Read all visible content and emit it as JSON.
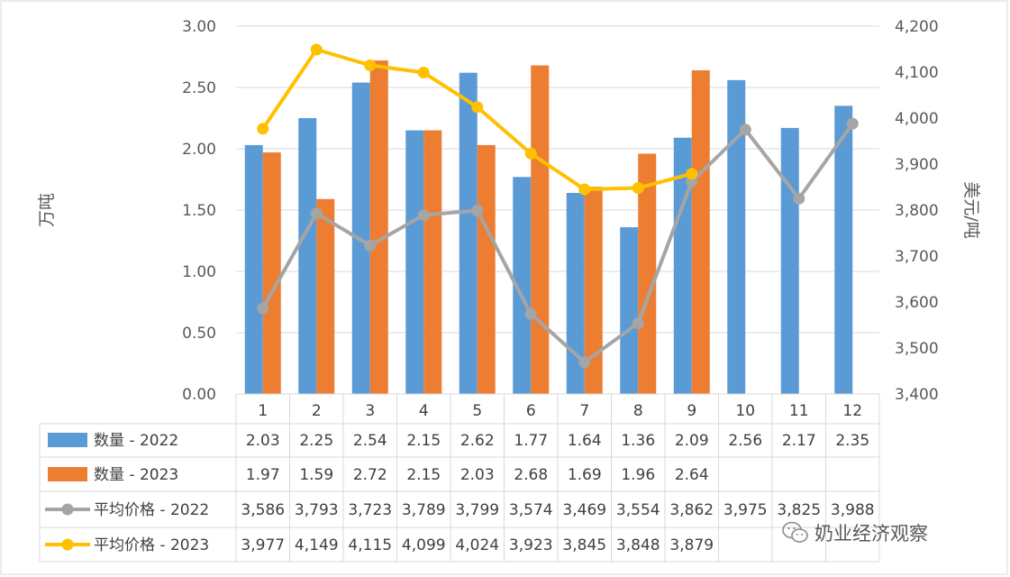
{
  "chart_data": {
    "type": "bar+line combo with data table",
    "categories": [
      "1",
      "2",
      "3",
      "4",
      "5",
      "6",
      "7",
      "8",
      "9",
      "10",
      "11",
      "12"
    ],
    "y_left": {
      "label": "万吨",
      "min": 0,
      "max": 3,
      "ticks": [
        "0.00",
        "0.50",
        "1.00",
        "1.50",
        "2.00",
        "2.50",
        "3.00"
      ]
    },
    "y_right": {
      "label": "美元/吨",
      "min": 3400,
      "max": 4200,
      "ticks": [
        "3,400",
        "3,500",
        "3,600",
        "3,700",
        "3,800",
        "3,900",
        "4,000",
        "4,100",
        "4,200"
      ]
    },
    "gridlines": true,
    "legend": "data table below chart",
    "bars": [
      {
        "name": "数量 - 2022",
        "color": "#5B9BD5",
        "values": [
          2.03,
          2.25,
          2.54,
          2.15,
          2.62,
          1.77,
          1.64,
          1.36,
          2.09,
          2.56,
          2.17,
          2.35
        ],
        "labels": [
          "2.03",
          "2.25",
          "2.54",
          "2.15",
          "2.62",
          "1.77",
          "1.64",
          "1.36",
          "2.09",
          "2.56",
          "2.17",
          "2.35"
        ]
      },
      {
        "name": "数量 - 2023",
        "color": "#ED7D31",
        "values": [
          1.97,
          1.59,
          2.72,
          2.15,
          2.03,
          2.68,
          1.69,
          1.96,
          2.64,
          null,
          null,
          null
        ],
        "labels": [
          "1.97",
          "1.59",
          "2.72",
          "2.15",
          "2.03",
          "2.68",
          "1.69",
          "1.96",
          "2.64",
          "",
          "",
          ""
        ]
      }
    ],
    "lines": [
      {
        "name": "平均价格 - 2022",
        "color": "#A5A5A5",
        "values": [
          3586,
          3793,
          3723,
          3789,
          3799,
          3574,
          3469,
          3554,
          3862,
          3975,
          3825,
          3988
        ],
        "labels": [
          "3,586",
          "3,793",
          "3,723",
          "3,789",
          "3,799",
          "3,574",
          "3,469",
          "3,554",
          "3,862",
          "3,975",
          "3,825",
          "3,988"
        ]
      },
      {
        "name": "平均价格 - 2023",
        "color": "#FFC000",
        "values": [
          3977,
          4149,
          4115,
          4099,
          4024,
          3923,
          3845,
          3848,
          3879,
          null,
          null,
          null
        ],
        "labels": [
          "3,977",
          "4,149",
          "4,115",
          "4,099",
          "4,024",
          "3,923",
          "3,845",
          "3,848",
          "3,879",
          "",
          "",
          ""
        ]
      }
    ]
  },
  "watermark": {
    "text": "奶业经济观察",
    "icon": "wechat-icon"
  }
}
